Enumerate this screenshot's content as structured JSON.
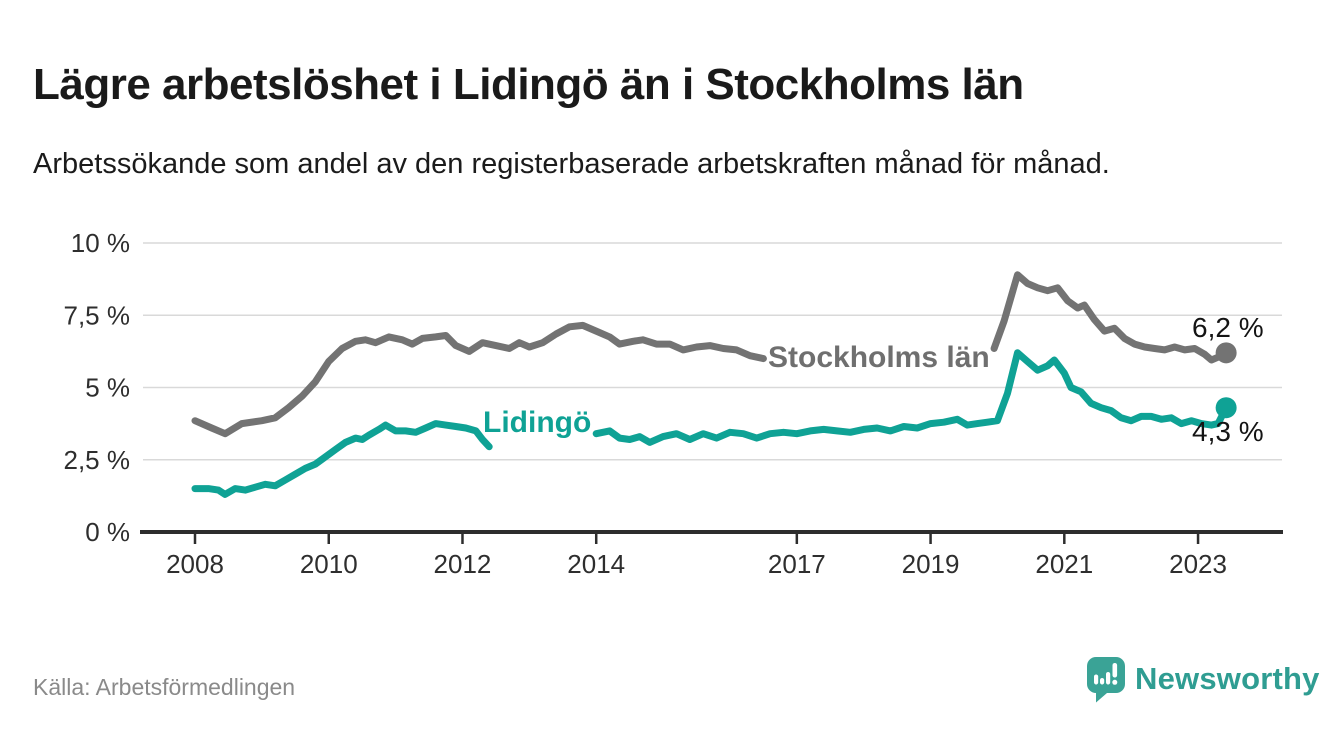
{
  "header": {
    "title": "Lägre arbetslöshet i Lidingö än i Stockholms län",
    "subtitle": "Arbetssökande som andel av den registerbaserade arbetskraften månad för månad."
  },
  "chart_data": {
    "type": "line",
    "unit": "%",
    "grid": "horizontal",
    "legend_position": "inline-on-lines",
    "y_axis": {
      "range": [
        0,
        10
      ],
      "ticks": [
        {
          "label": "10 %",
          "value": 10
        },
        {
          "label": "7,5 %",
          "value": 7.5
        },
        {
          "label": "5 %",
          "value": 5
        },
        {
          "label": "2,5 %",
          "value": 2.5
        },
        {
          "label": "0 %",
          "value": 0
        }
      ]
    },
    "x_axis": {
      "range_years": [
        2007.2,
        2024.3
      ],
      "ticks": [
        {
          "label": "2008",
          "year": 2008
        },
        {
          "label": "2010",
          "year": 2010
        },
        {
          "label": "2012",
          "year": 2012
        },
        {
          "label": "2014",
          "year": 2014
        },
        {
          "label": "2017",
          "year": 2017
        },
        {
          "label": "2019",
          "year": 2019
        },
        {
          "label": "2021",
          "year": 2021
        },
        {
          "label": "2023",
          "year": 2023
        }
      ]
    },
    "series": [
      {
        "name": "Stockholms län",
        "color": "#737373",
        "end_value_label": "6,2 %",
        "end_value": 6.2,
        "label_gap_years": [
          2016.51,
          2019.94
        ],
        "points": [
          [
            2008.0,
            3.85
          ],
          [
            2008.25,
            3.6
          ],
          [
            2008.45,
            3.4
          ],
          [
            2008.7,
            3.75
          ],
          [
            2009.0,
            3.85
          ],
          [
            2009.2,
            3.95
          ],
          [
            2009.4,
            4.3
          ],
          [
            2009.6,
            4.7
          ],
          [
            2009.8,
            5.2
          ],
          [
            2010.0,
            5.9
          ],
          [
            2010.2,
            6.35
          ],
          [
            2010.4,
            6.6
          ],
          [
            2010.55,
            6.65
          ],
          [
            2010.7,
            6.55
          ],
          [
            2010.9,
            6.75
          ],
          [
            2011.1,
            6.65
          ],
          [
            2011.25,
            6.5
          ],
          [
            2011.4,
            6.7
          ],
          [
            2011.6,
            6.75
          ],
          [
            2011.75,
            6.8
          ],
          [
            2011.9,
            6.45
          ],
          [
            2012.1,
            6.25
          ],
          [
            2012.3,
            6.55
          ],
          [
            2012.5,
            6.45
          ],
          [
            2012.7,
            6.35
          ],
          [
            2012.85,
            6.55
          ],
          [
            2013.0,
            6.4
          ],
          [
            2013.2,
            6.55
          ],
          [
            2013.4,
            6.85
          ],
          [
            2013.6,
            7.1
          ],
          [
            2013.8,
            7.15
          ],
          [
            2014.0,
            6.95
          ],
          [
            2014.2,
            6.75
          ],
          [
            2014.35,
            6.5
          ],
          [
            2014.55,
            6.6
          ],
          [
            2014.7,
            6.65
          ],
          [
            2014.9,
            6.5
          ],
          [
            2015.1,
            6.5
          ],
          [
            2015.3,
            6.3
          ],
          [
            2015.5,
            6.4
          ],
          [
            2015.7,
            6.45
          ],
          [
            2015.9,
            6.35
          ],
          [
            2016.1,
            6.3
          ],
          [
            2016.3,
            6.1
          ],
          [
            2016.5,
            6.0
          ],
          [
            2017.0,
            6.0
          ],
          [
            2017.5,
            6.0
          ],
          [
            2018.0,
            6.05
          ],
          [
            2018.5,
            6.1
          ],
          [
            2019.0,
            6.15
          ],
          [
            2019.5,
            6.2
          ],
          [
            2019.95,
            6.35
          ],
          [
            2020.1,
            7.3
          ],
          [
            2020.3,
            8.9
          ],
          [
            2020.45,
            8.6
          ],
          [
            2020.6,
            8.45
          ],
          [
            2020.75,
            8.35
          ],
          [
            2020.9,
            8.45
          ],
          [
            2021.05,
            8.0
          ],
          [
            2021.2,
            7.75
          ],
          [
            2021.3,
            7.85
          ],
          [
            2021.45,
            7.35
          ],
          [
            2021.6,
            6.95
          ],
          [
            2021.75,
            7.05
          ],
          [
            2021.9,
            6.7
          ],
          [
            2022.05,
            6.5
          ],
          [
            2022.2,
            6.4
          ],
          [
            2022.35,
            6.35
          ],
          [
            2022.5,
            6.3
          ],
          [
            2022.65,
            6.4
          ],
          [
            2022.8,
            6.3
          ],
          [
            2022.95,
            6.35
          ],
          [
            2023.1,
            6.15
          ],
          [
            2023.2,
            5.95
          ],
          [
            2023.3,
            6.05
          ],
          [
            2023.42,
            6.2
          ]
        ]
      },
      {
        "name": "Lidingö",
        "color": "#0fa295",
        "end_value_label": "4,3 %",
        "end_value": 4.3,
        "label_gap_years": [
          2012.41,
          2013.99
        ],
        "points": [
          [
            2008.0,
            1.5
          ],
          [
            2008.2,
            1.5
          ],
          [
            2008.35,
            1.45
          ],
          [
            2008.45,
            1.3
          ],
          [
            2008.6,
            1.5
          ],
          [
            2008.75,
            1.45
          ],
          [
            2008.9,
            1.55
          ],
          [
            2009.05,
            1.65
          ],
          [
            2009.2,
            1.6
          ],
          [
            2009.35,
            1.8
          ],
          [
            2009.5,
            2.0
          ],
          [
            2009.65,
            2.2
          ],
          [
            2009.8,
            2.35
          ],
          [
            2009.95,
            2.6
          ],
          [
            2010.1,
            2.85
          ],
          [
            2010.25,
            3.1
          ],
          [
            2010.4,
            3.25
          ],
          [
            2010.5,
            3.2
          ],
          [
            2010.6,
            3.35
          ],
          [
            2010.75,
            3.55
          ],
          [
            2010.85,
            3.7
          ],
          [
            2011.0,
            3.5
          ],
          [
            2011.15,
            3.5
          ],
          [
            2011.3,
            3.45
          ],
          [
            2011.45,
            3.6
          ],
          [
            2011.6,
            3.75
          ],
          [
            2011.75,
            3.7
          ],
          [
            2011.9,
            3.65
          ],
          [
            2012.05,
            3.6
          ],
          [
            2012.2,
            3.5
          ],
          [
            2012.3,
            3.2
          ],
          [
            2012.4,
            2.95
          ],
          [
            2013.0,
            3.2
          ],
          [
            2013.5,
            3.35
          ],
          [
            2014.0,
            3.4
          ],
          [
            2014.2,
            3.5
          ],
          [
            2014.35,
            3.25
          ],
          [
            2014.5,
            3.2
          ],
          [
            2014.65,
            3.3
          ],
          [
            2014.8,
            3.1
          ],
          [
            2015.0,
            3.3
          ],
          [
            2015.2,
            3.4
          ],
          [
            2015.4,
            3.2
          ],
          [
            2015.6,
            3.4
          ],
          [
            2015.8,
            3.25
          ],
          [
            2016.0,
            3.45
          ],
          [
            2016.2,
            3.4
          ],
          [
            2016.4,
            3.25
          ],
          [
            2016.6,
            3.4
          ],
          [
            2016.8,
            3.45
          ],
          [
            2017.0,
            3.4
          ],
          [
            2017.2,
            3.5
          ],
          [
            2017.4,
            3.55
          ],
          [
            2017.6,
            3.5
          ],
          [
            2017.8,
            3.45
          ],
          [
            2018.0,
            3.55
          ],
          [
            2018.2,
            3.6
          ],
          [
            2018.4,
            3.5
          ],
          [
            2018.6,
            3.65
          ],
          [
            2018.8,
            3.6
          ],
          [
            2019.0,
            3.75
          ],
          [
            2019.2,
            3.8
          ],
          [
            2019.4,
            3.9
          ],
          [
            2019.55,
            3.7
          ],
          [
            2019.7,
            3.75
          ],
          [
            2019.85,
            3.8
          ],
          [
            2020.0,
            3.85
          ],
          [
            2020.15,
            4.8
          ],
          [
            2020.3,
            6.2
          ],
          [
            2020.45,
            5.9
          ],
          [
            2020.6,
            5.6
          ],
          [
            2020.75,
            5.75
          ],
          [
            2020.85,
            5.95
          ],
          [
            2021.0,
            5.5
          ],
          [
            2021.1,
            5.0
          ],
          [
            2021.25,
            4.85
          ],
          [
            2021.4,
            4.45
          ],
          [
            2021.55,
            4.3
          ],
          [
            2021.7,
            4.2
          ],
          [
            2021.85,
            3.95
          ],
          [
            2022.0,
            3.85
          ],
          [
            2022.15,
            4.0
          ],
          [
            2022.3,
            4.0
          ],
          [
            2022.45,
            3.9
          ],
          [
            2022.6,
            3.95
          ],
          [
            2022.75,
            3.75
          ],
          [
            2022.9,
            3.85
          ],
          [
            2023.05,
            3.75
          ],
          [
            2023.2,
            3.7
          ],
          [
            2023.3,
            3.75
          ],
          [
            2023.42,
            4.3
          ]
        ]
      }
    ]
  },
  "annotations": {
    "stockholm_series_label": "Stockholms län",
    "lidingo_series_label": "Lidingö",
    "stockholm_end_label": "6,2 %",
    "lidingo_end_label": "4,3 %"
  },
  "footer": {
    "source": "Källa: Arbetsförmedlingen",
    "brand_name": "Newsworthy"
  },
  "colors": {
    "stockholm_line": "#737373",
    "lidingo_line": "#0fa295",
    "brand_teal": "#2f9d92",
    "gridline": "#d9d9d9",
    "axis": "#2d2d2d",
    "tick_text": "#2e2e2e"
  }
}
